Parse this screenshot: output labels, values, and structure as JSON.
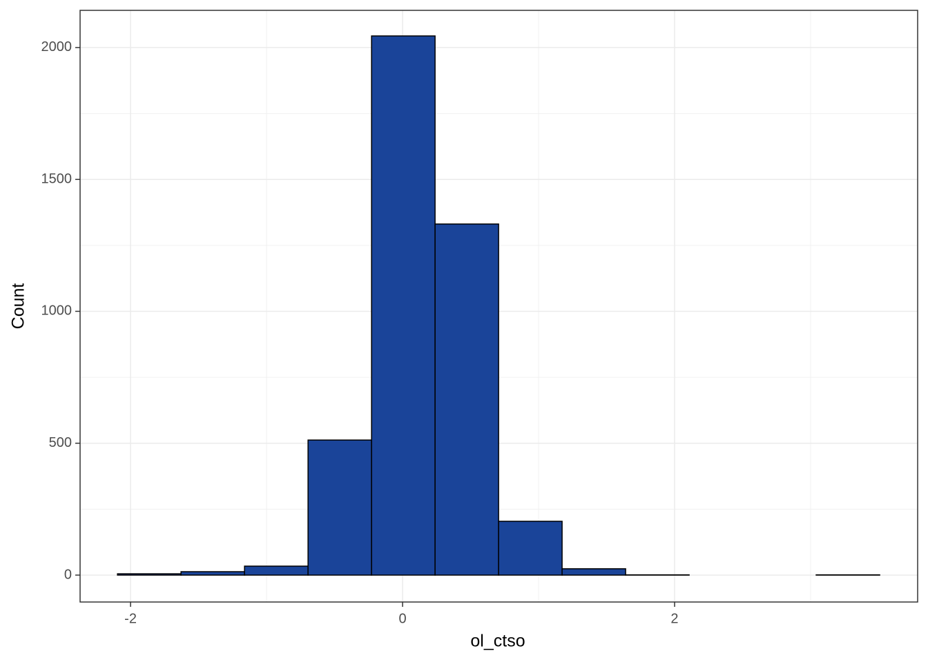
{
  "chart_data": {
    "type": "histogram",
    "x_label": "ol_ctso",
    "y_label": "Count",
    "bins": [
      -2.096,
      -1.629,
      -1.162,
      -0.695,
      -0.228,
      0.239,
      0.706,
      1.173,
      1.64,
      2.107,
      2.574,
      3.041,
      3.508
    ],
    "values": [
      5,
      13,
      34,
      512,
      2044,
      1331,
      204,
      24,
      1,
      0,
      0,
      1
    ],
    "color": "#1a4499",
    "edge_color": "#000000",
    "xlim": [
      -2.371,
      3.787
    ],
    "ylim": [
      -102,
      2141
    ],
    "xticks": [
      -2,
      0,
      2
    ],
    "yticks": [
      0,
      500,
      1000,
      1500,
      2000
    ],
    "grid": true
  }
}
